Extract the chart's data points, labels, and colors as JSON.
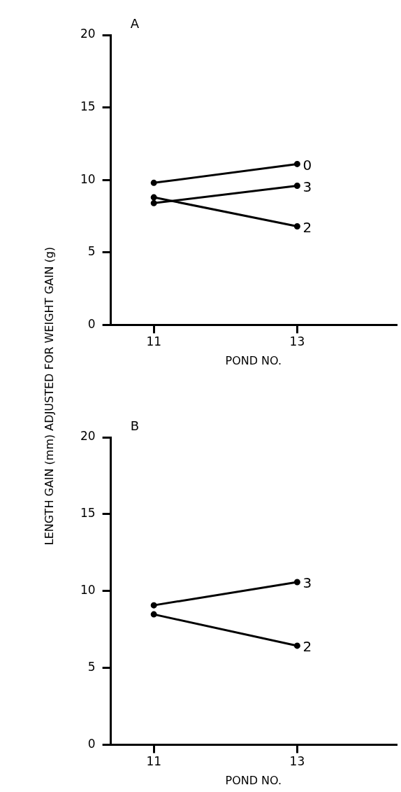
{
  "chart_data": [
    {
      "type": "line",
      "title": "A",
      "xlabel": "POND NO.",
      "ylabel": "LENGTH GAIN (mm) ADJUSTED FOR WEIGHT GAIN (g)",
      "categories": [
        "11",
        "13"
      ],
      "ylim": [
        0,
        20
      ],
      "yticks": [
        0,
        5,
        10,
        15,
        20
      ],
      "marker": "circle",
      "legend": false,
      "series": [
        {
          "name": "0",
          "color": "#000000",
          "values": [
            9.8,
            11.1
          ]
        },
        {
          "name": "3",
          "color": "#000000",
          "values": [
            8.4,
            9.6
          ]
        },
        {
          "name": "2",
          "color": "#000000",
          "values": [
            8.8,
            6.8
          ]
        }
      ]
    },
    {
      "type": "line",
      "title": "B",
      "xlabel": "POND NO.",
      "categories": [
        "11",
        "13"
      ],
      "ylim": [
        0,
        20
      ],
      "yticks": [
        0,
        5,
        10,
        15,
        20
      ],
      "marker": "circle",
      "legend": false,
      "series": [
        {
          "name": "3",
          "color": "#000000",
          "values": [
            9.07,
            10.58
          ]
        },
        {
          "name": "2",
          "color": "#000000",
          "values": [
            8.48,
            6.44
          ]
        }
      ]
    }
  ]
}
